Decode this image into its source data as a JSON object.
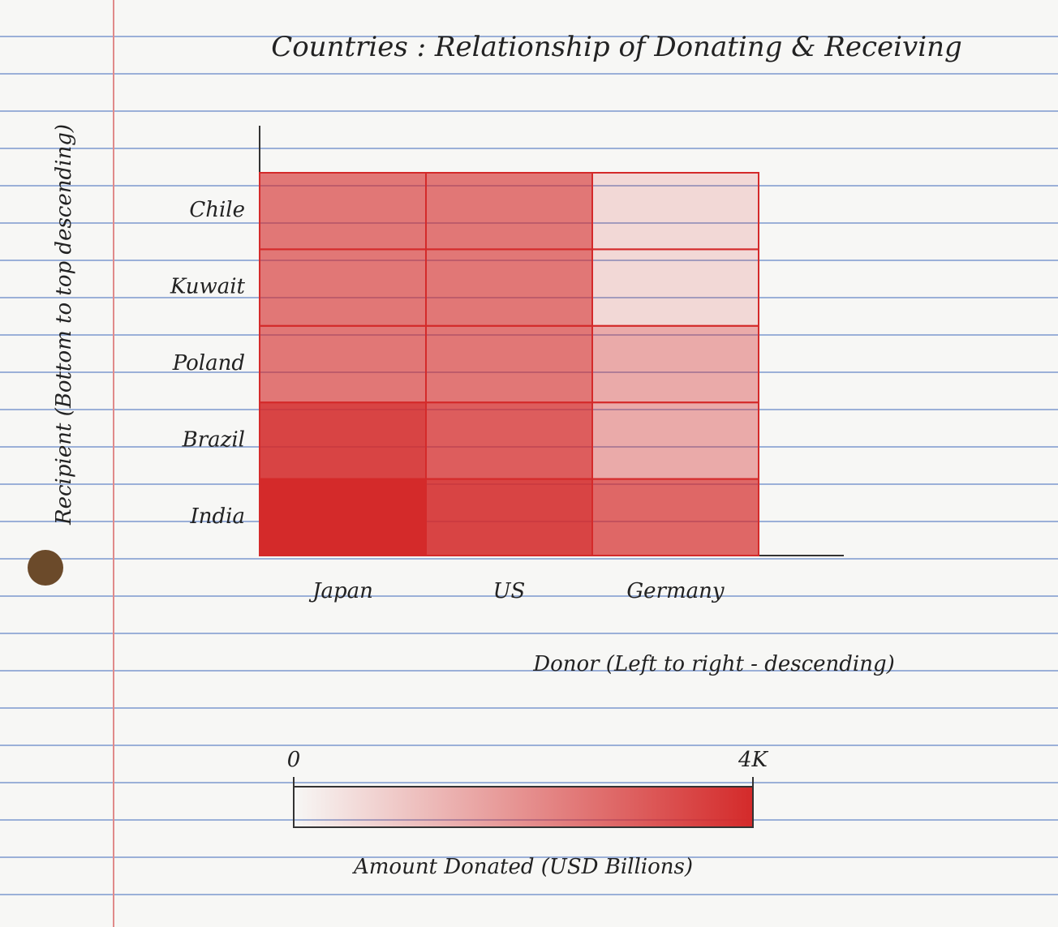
{
  "chart_data": {
    "type": "heatmap",
    "title": "Countries : Relationship of Donating & Receiving",
    "x_label": "Donor (Left to right - descending)",
    "y_label": "Recipient (Bottom to top descending)",
    "x_categories": [
      "Japan",
      "US",
      "Germany"
    ],
    "y_categories": [
      "Chile",
      "Kuwait",
      "Poland",
      "Brazil",
      "India"
    ],
    "values": [
      [
        2500,
        2500,
        600
      ],
      [
        2500,
        2500,
        600
      ],
      [
        2500,
        2500,
        1500
      ],
      [
        3500,
        3000,
        1500
      ],
      [
        4000,
        3500,
        2800
      ]
    ],
    "color": "#d42a2a",
    "colorbar_label": "Amount Donated (USD Billions)",
    "zlim": [
      0,
      4000
    ],
    "zticks": [
      0,
      {
        "value": 4000,
        "label": "4K"
      }
    ]
  }
}
